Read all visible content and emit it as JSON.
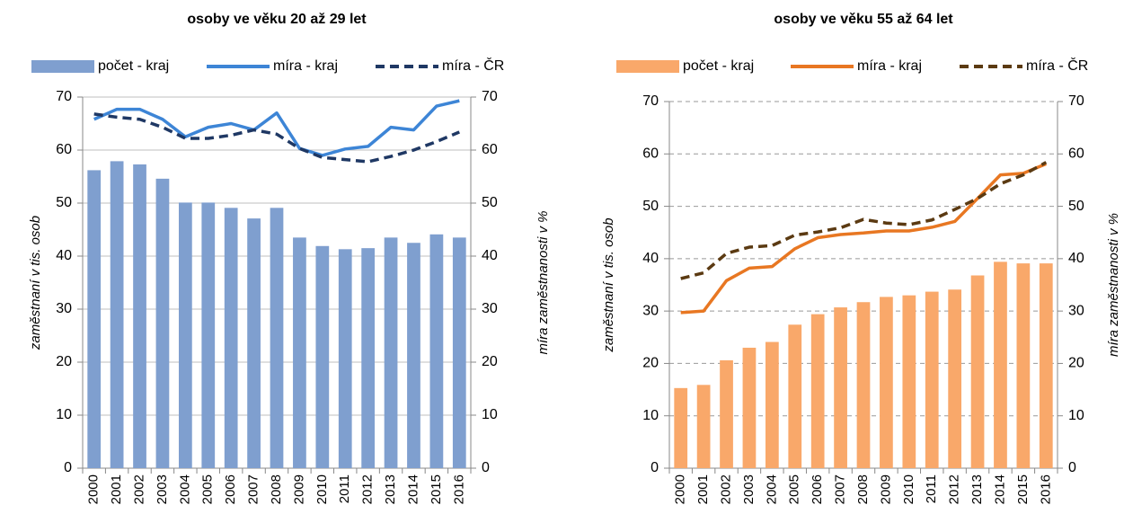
{
  "chart_data": [
    {
      "type": "bar",
      "title": "osoby ve věku 20 až 29 let",
      "y_label": "zaměstnaní v tis. osob",
      "y2_label": "míra zaměstnanosti v %",
      "categories": [
        "2000",
        "2001",
        "2002",
        "2003",
        "2004",
        "2005",
        "2006",
        "2007",
        "2008",
        "2009",
        "2010",
        "2011",
        "2012",
        "2013",
        "2014",
        "2015",
        "2016"
      ],
      "series": [
        {
          "name": "počet - kraj",
          "kind": "bar",
          "color": "#7f9fcf",
          "values": [
            56.2,
            57.9,
            57.3,
            54.6,
            50.1,
            50.1,
            49.1,
            47.1,
            49.1,
            43.5,
            41.9,
            41.3,
            41.5,
            43.5,
            42.5,
            44.1,
            43.5
          ]
        },
        {
          "name": "míra - kraj",
          "kind": "line",
          "axis": "y2",
          "color": "#3d85d6",
          "values": [
            65.8,
            67.7,
            67.7,
            65.8,
            62.5,
            64.3,
            65.0,
            63.8,
            67.0,
            60.3,
            59.0,
            60.2,
            60.7,
            64.3,
            63.8,
            68.3,
            69.3
          ]
        },
        {
          "name": "míra - ČR",
          "kind": "line",
          "axis": "y2",
          "dashed": true,
          "color": "#1f3864",
          "values": [
            66.8,
            66.2,
            65.8,
            64.3,
            62.2,
            62.2,
            62.8,
            63.8,
            63.0,
            60.3,
            58.6,
            58.2,
            57.8,
            58.8,
            60.0,
            61.6,
            63.4
          ]
        }
      ],
      "ylim": [
        0,
        70
      ],
      "yticks": [
        0,
        10,
        20,
        30,
        40,
        50,
        60,
        70
      ],
      "y2lim": [
        0,
        70
      ],
      "y2ticks": [
        0,
        10,
        20,
        30,
        40,
        50,
        60,
        70
      ],
      "grid": "solid",
      "legend": "top"
    },
    {
      "type": "bar",
      "title": "osoby ve věku 55 až 64 let",
      "y_label": "zaměstnaní v tis. osob",
      "y2_label": "míra zaměstnanosti v %",
      "categories": [
        "2000",
        "2001",
        "2002",
        "2003",
        "2004",
        "2005",
        "2006",
        "2007",
        "2008",
        "2009",
        "2010",
        "2011",
        "2012",
        "2013",
        "2014",
        "2015",
        "2016"
      ],
      "series": [
        {
          "name": "počet - kraj",
          "kind": "bar",
          "color": "#f9a86a",
          "values": [
            15.3,
            15.9,
            20.6,
            23.0,
            24.1,
            27.4,
            29.4,
            30.7,
            31.7,
            32.7,
            33.0,
            33.7,
            34.1,
            36.8,
            39.4,
            39.1,
            39.1
          ]
        },
        {
          "name": "míra - kraj",
          "kind": "line",
          "axis": "y2",
          "color": "#e87722",
          "values": [
            29.7,
            30.0,
            35.8,
            38.2,
            38.5,
            41.9,
            44.0,
            44.6,
            44.9,
            45.3,
            45.3,
            46.0,
            47.1,
            51.5,
            56.0,
            56.3,
            58.1
          ]
        },
        {
          "name": "míra - ČR",
          "kind": "line",
          "axis": "y2",
          "dashed": true,
          "color": "#5b3a12",
          "values": [
            36.2,
            37.3,
            41.0,
            42.2,
            42.5,
            44.5,
            45.1,
            45.9,
            47.5,
            46.8,
            46.5,
            47.4,
            49.4,
            51.5,
            54.3,
            56.0,
            58.4
          ]
        }
      ],
      "ylim": [
        0,
        70
      ],
      "yticks": [
        0,
        10,
        20,
        30,
        40,
        50,
        60,
        70
      ],
      "y2lim": [
        0,
        70
      ],
      "y2ticks": [
        0,
        10,
        20,
        30,
        40,
        50,
        60,
        70
      ],
      "grid": "dashed",
      "legend": "top"
    }
  ]
}
